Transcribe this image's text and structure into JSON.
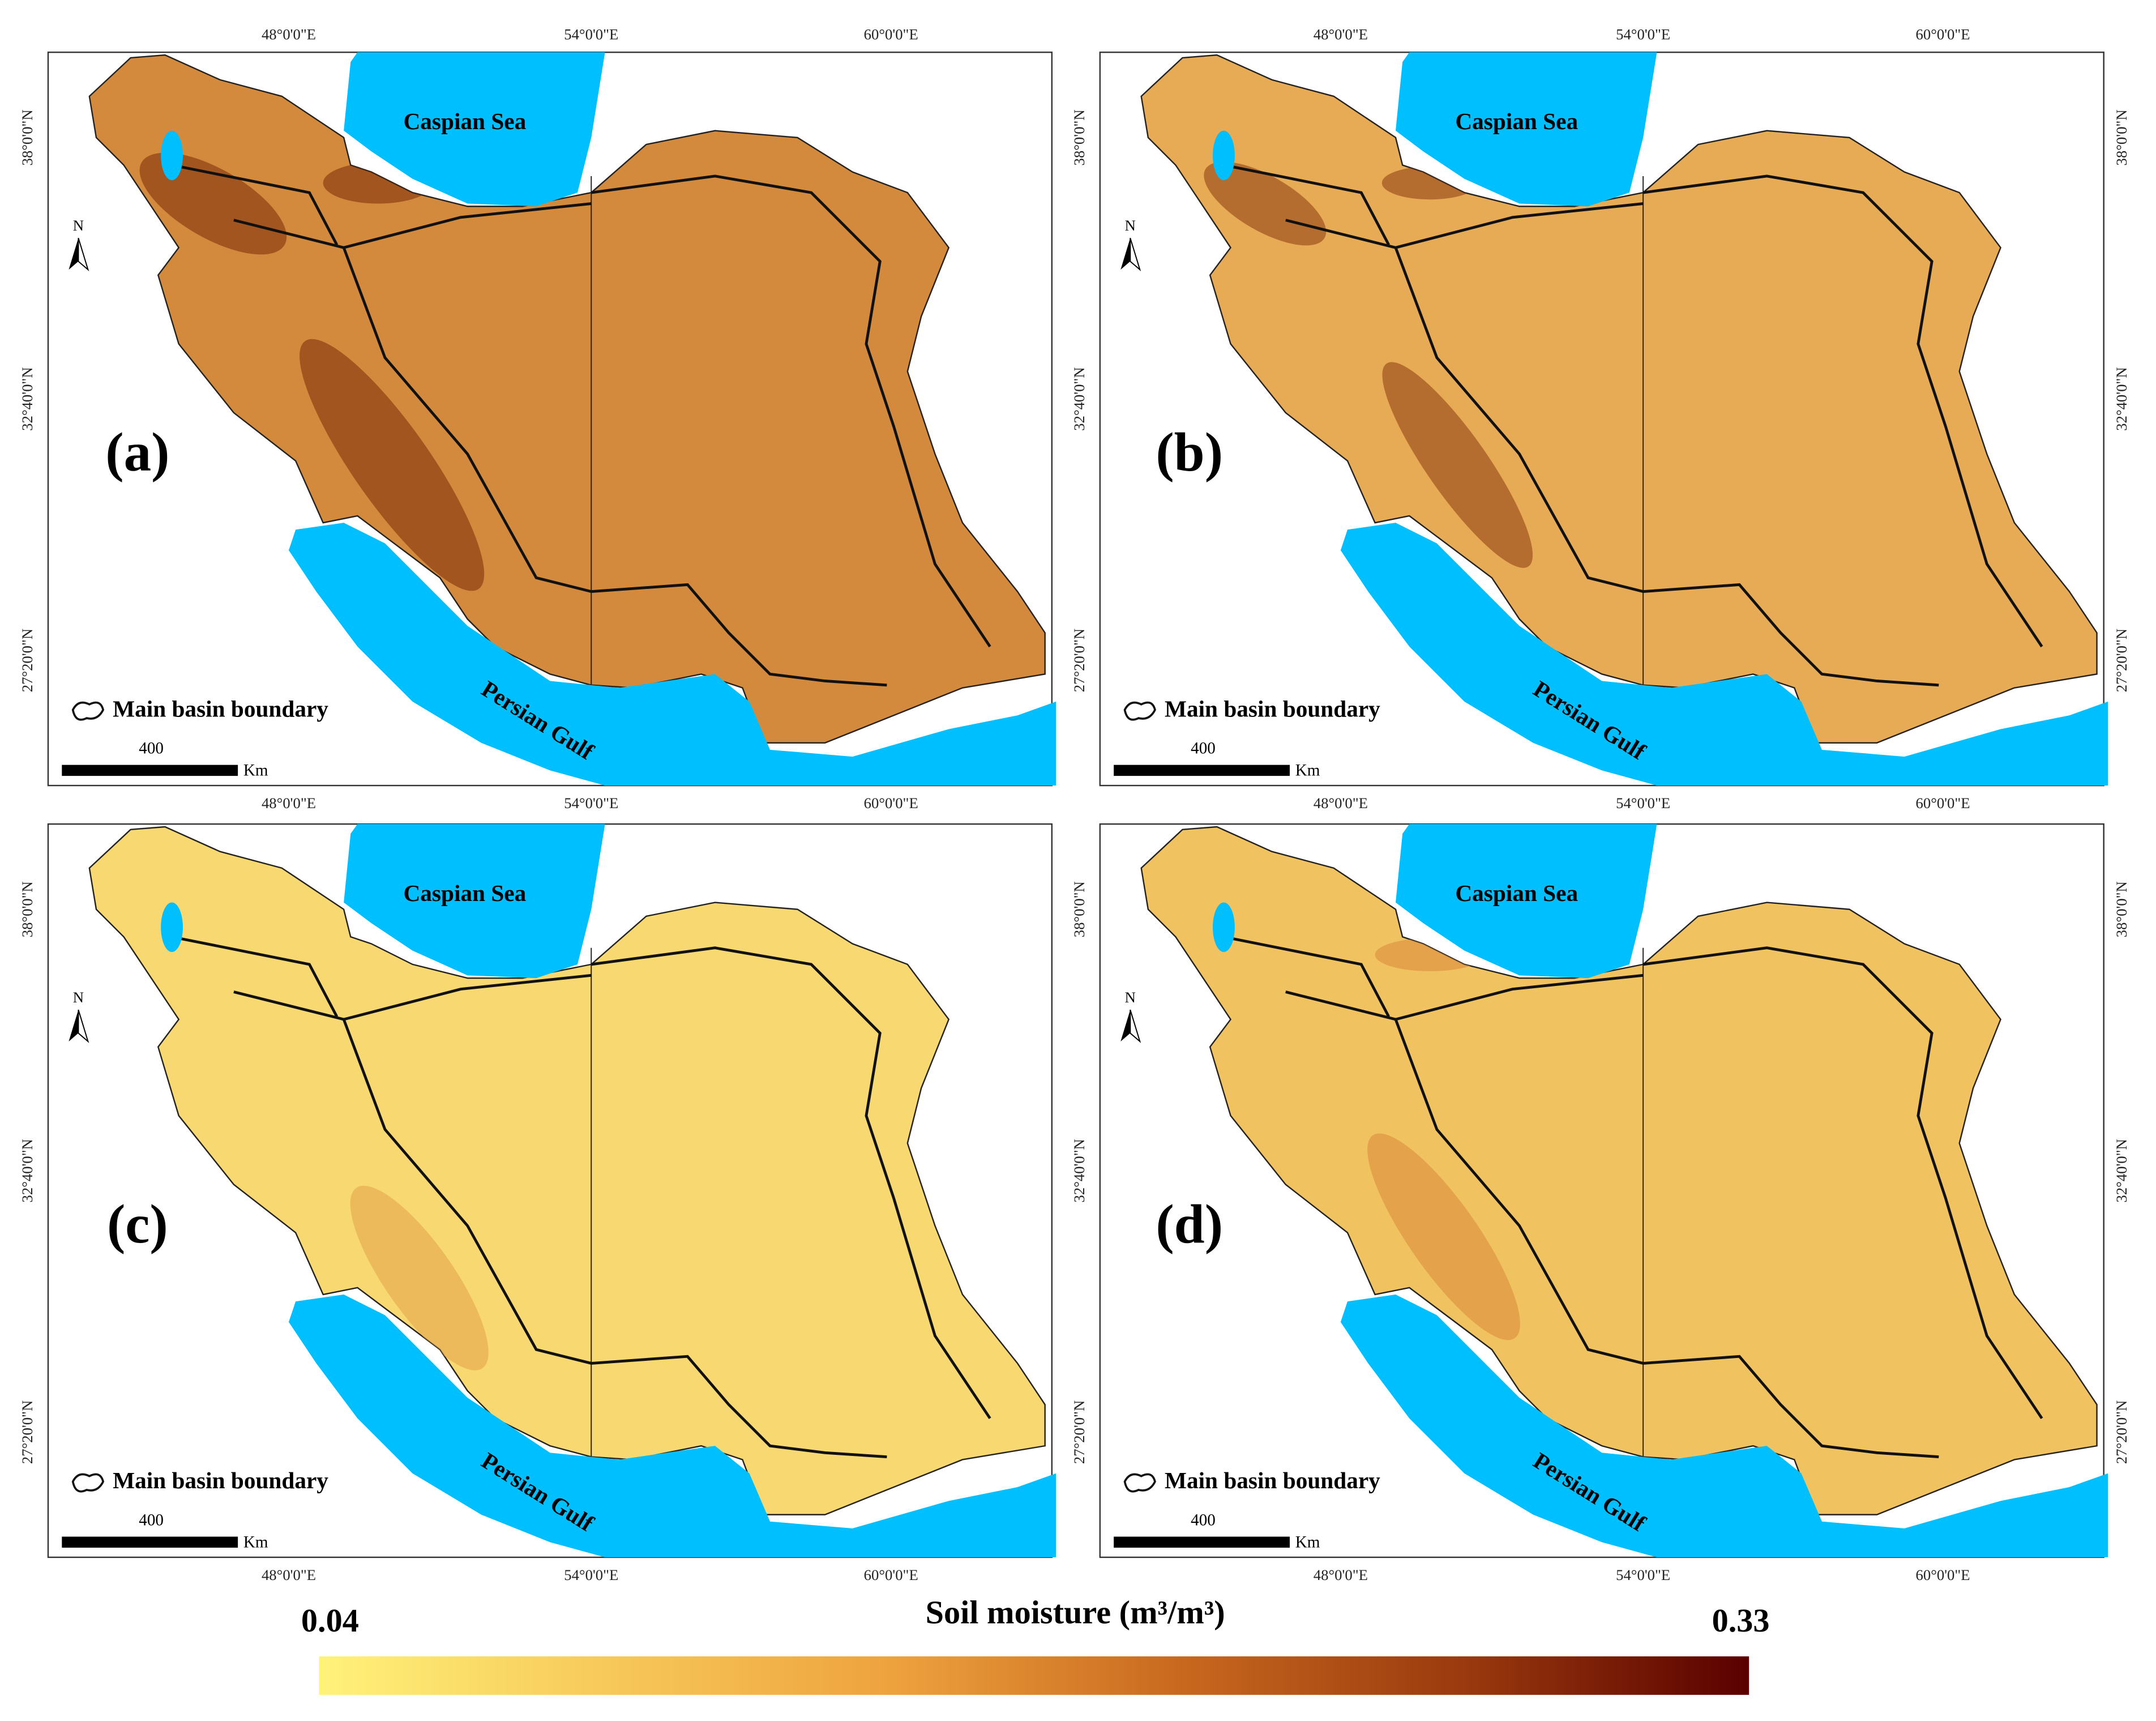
{
  "panels": [
    {
      "label": "(a)",
      "fill": "#d48a3c",
      "shade": "#7a2a08"
    },
    {
      "label": "(b)",
      "fill": "#e7aa55",
      "shade": "#8c3a10"
    },
    {
      "label": "(c)",
      "fill": "#f8d870",
      "shade": "#e4a24a"
    },
    {
      "label": "(d)",
      "fill": "#f1c260",
      "shade": "#d98a3a"
    }
  ],
  "map_labels": {
    "sea_north": "Caspian Sea",
    "sea_south": "Persian Gulf",
    "legend": "Main basin boundary",
    "scale_value": 400,
    "scale_unit": "Km",
    "north": "N"
  },
  "lon_labels": [
    "48°0'0\"E",
    "54°0'0\"E",
    "60°0'0\"E"
  ],
  "lat_labels": [
    "38°0'0\"N",
    "32°40'0\"N",
    "27°20'0\"N"
  ],
  "colorbar": {
    "title": "Soil moisture (m³/m³)",
    "min": 0.04,
    "max": 0.33,
    "colors": [
      "#fff27a",
      "#f7c95a",
      "#eea23e",
      "#c9691f",
      "#9a3a0e",
      "#5a0000"
    ]
  }
}
